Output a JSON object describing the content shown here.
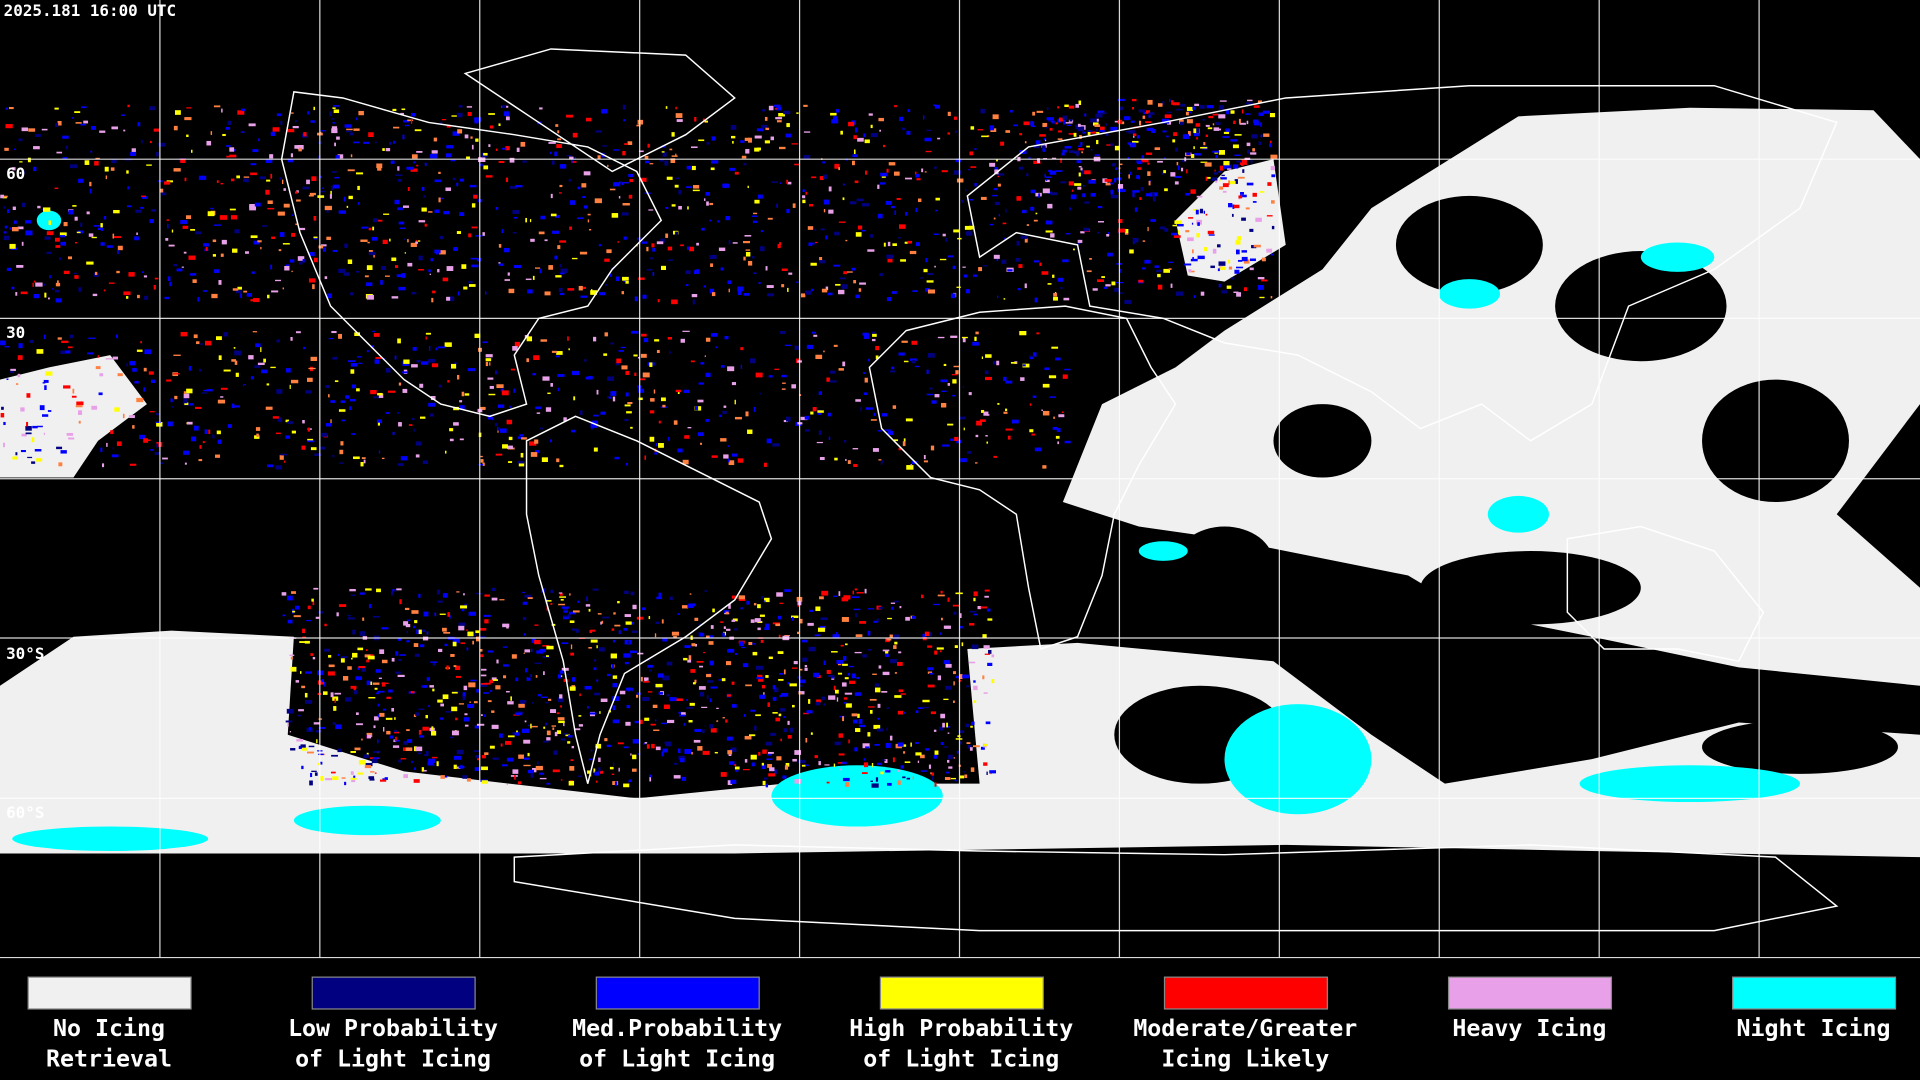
{
  "header": {
    "title": "2025.181 16:00 UTC"
  },
  "map": {
    "latitude_labels": [
      "60",
      "30",
      "30°S",
      "60°S"
    ]
  },
  "legend": {
    "items": [
      {
        "color": "#f0f0f0",
        "lines": [
          "No Icing",
          "Retrieval"
        ]
      },
      {
        "color": "#000080",
        "lines": [
          "Low Probability",
          "of Light Icing"
        ]
      },
      {
        "color": "#0000ff",
        "lines": [
          "Med.Probability",
          "of Light Icing"
        ]
      },
      {
        "color": "#ffff00",
        "lines": [
          "High Probability",
          "of Light Icing"
        ]
      },
      {
        "color": "#ff0000",
        "lines": [
          "Moderate/Greater",
          "Icing Likely"
        ]
      },
      {
        "color": "#e8a0e8",
        "lines": [
          "Heavy Icing"
        ]
      },
      {
        "color": "#00ffff",
        "lines": [
          "Night Icing"
        ]
      }
    ]
  }
}
